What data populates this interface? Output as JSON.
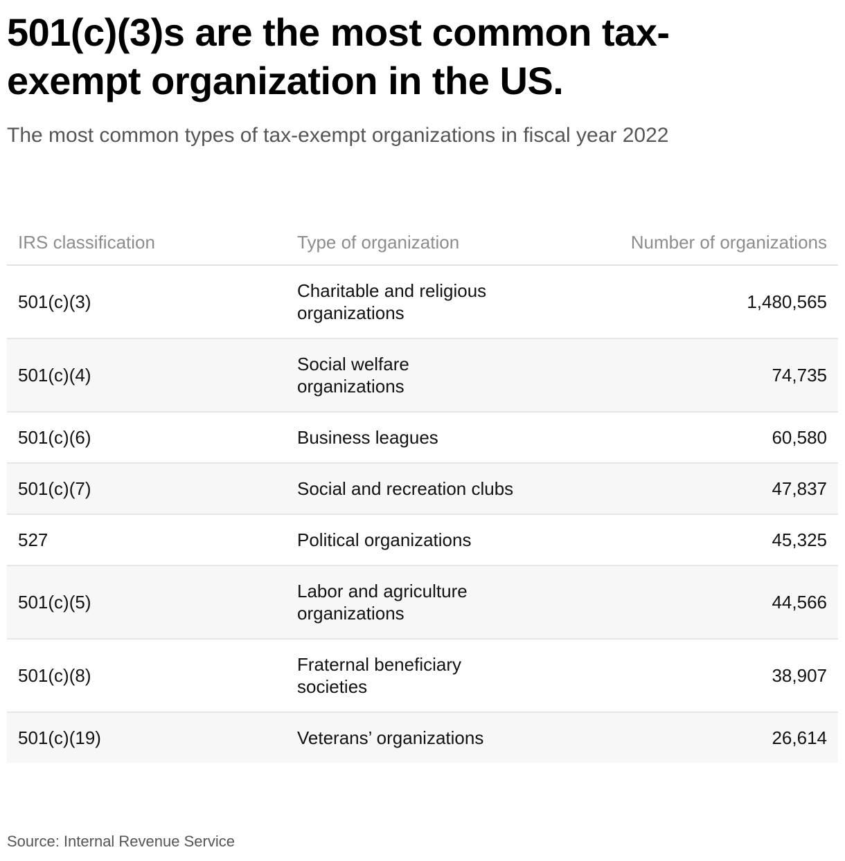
{
  "title": "501(c)(3)s are the most common tax-exempt organization in the US.",
  "subtitle": "The most common types of tax-exempt organizations in fiscal year 2022",
  "source": "Source: Internal Revenue Service",
  "colors": {
    "text": "#111111",
    "muted": "#555555",
    "header": "#8c8c8c",
    "stripe": "#f7f7f7",
    "rule": "#e6e6e6"
  },
  "chart_data": {
    "type": "table",
    "title": "501(c)(3)s are the most common tax-exempt organization in the US.",
    "subtitle": "The most common types of tax-exempt organizations in fiscal year 2022",
    "columns": [
      "IRS classification",
      "Type of organization",
      "Number of organizations"
    ],
    "rows": [
      {
        "classification": "501(c)(3)",
        "type": "Charitable and religious organizations",
        "count": "1,480,565",
        "value": 1480565
      },
      {
        "classification": "501(c)(4)",
        "type": "Social welfare organizations",
        "count": "74,735",
        "value": 74735
      },
      {
        "classification": "501(c)(6)",
        "type": "Business leagues",
        "count": "60,580",
        "value": 60580
      },
      {
        "classification": "501(c)(7)",
        "type": "Social and recreation clubs",
        "count": "47,837",
        "value": 47837
      },
      {
        "classification": "527",
        "type": "Political organizations",
        "count": "45,325",
        "value": 45325
      },
      {
        "classification": "501(c)(5)",
        "type": "Labor and agriculture organizations",
        "count": "44,566",
        "value": 44566
      },
      {
        "classification": "501(c)(8)",
        "type": "Fraternal beneficiary societies",
        "count": "38,907",
        "value": 38907
      },
      {
        "classification": "501(c)(19)",
        "type": "Veterans’ organizations",
        "count": "26,614",
        "value": 26614
      }
    ],
    "source": "Source: Internal Revenue Service"
  }
}
